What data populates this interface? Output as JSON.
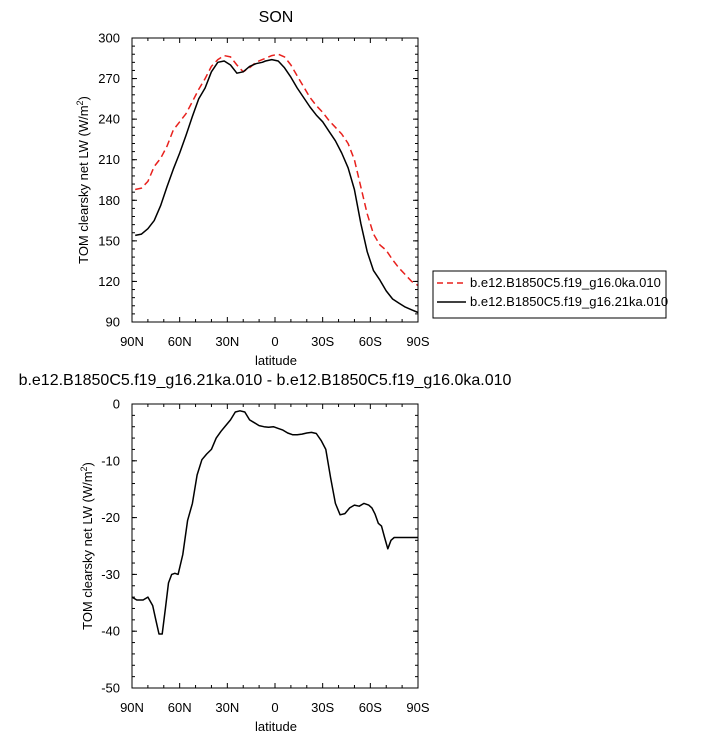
{
  "chart_data": [
    {
      "type": "line",
      "title": "SON",
      "xlabel": "latitude",
      "ylabel": "TOM clearsky net LW (W/m²)",
      "ylabel_main": "TOM clearsky net LW (W/m",
      "ylabel_sup": "2",
      "ylabel_close": ")",
      "xlim": [
        90,
        -90
      ],
      "ylim": [
        90,
        300
      ],
      "x_ticks": [
        90,
        60,
        30,
        0,
        -30,
        -60,
        -90
      ],
      "x_tick_labels": [
        "90N",
        "60N",
        "30N",
        "0",
        "30S",
        "60S",
        "90S"
      ],
      "y_ticks": [
        90,
        120,
        150,
        180,
        210,
        240,
        270,
        300
      ],
      "y_tick_labels": [
        "90",
        "120",
        "150",
        "180",
        "210",
        "240",
        "270",
        "300"
      ],
      "legend_position": "right",
      "series": [
        {
          "name": "b.e12.B1850C5.f19_g16.0ka.010",
          "color": "#e8211d",
          "dash": "dashed",
          "x": [
            88,
            84,
            80,
            76,
            72,
            68,
            64,
            60,
            56,
            52,
            48,
            44,
            40,
            36,
            32,
            28,
            24,
            20,
            16,
            12,
            8,
            6,
            2,
            -2,
            -6,
            -10,
            -14,
            -18,
            -22,
            -26,
            -30,
            -34,
            -38,
            -42,
            -46,
            -50,
            -54,
            -58,
            -62,
            -66,
            -70,
            -74,
            -78,
            -82,
            -86,
            -90
          ],
          "y": [
            188,
            189,
            194,
            205,
            211,
            220,
            232,
            238,
            244,
            253,
            262,
            270,
            279,
            284,
            287,
            286,
            280,
            275,
            278,
            282,
            284,
            285,
            287,
            288,
            286,
            280,
            272,
            264,
            256,
            250,
            245,
            239,
            234,
            229,
            222,
            210,
            190,
            170,
            155,
            147,
            143,
            136,
            130,
            125,
            120,
            117
          ]
        },
        {
          "name": "b.e12.B1850C5.f19_g16.21ka.010",
          "color": "#000000",
          "dash": "solid",
          "x": [
            88,
            84,
            80,
            76,
            72,
            68,
            64,
            60,
            56,
            52,
            48,
            44,
            40,
            36,
            32,
            28,
            24,
            20,
            16,
            12,
            8,
            6,
            2,
            -2,
            -6,
            -10,
            -14,
            -18,
            -22,
            -26,
            -30,
            -34,
            -38,
            -42,
            -46,
            -50,
            -54,
            -58,
            -62,
            -66,
            -70,
            -74,
            -78,
            -82,
            -86,
            -90
          ],
          "y": [
            154,
            155,
            159,
            165,
            176,
            190,
            203,
            215,
            228,
            242,
            255,
            263,
            275,
            282,
            283,
            280,
            274,
            275,
            279,
            281,
            282,
            283,
            284,
            283,
            278,
            271,
            263,
            256,
            249,
            243,
            238,
            231,
            224,
            215,
            204,
            188,
            163,
            142,
            128,
            121,
            113,
            107,
            104,
            101,
            99,
            97
          ]
        }
      ]
    },
    {
      "type": "line",
      "title": "b.e12.B1850C5.f19_g16.21ka.010 - b.e12.B1850C5.f19_g16.0ka.010",
      "xlabel": "latitude",
      "ylabel": "TOM clearsky net LW (W/m²)",
      "ylabel_main": "TOM clearsky net LW (W/m",
      "ylabel_sup": "2",
      "ylabel_close": ")",
      "xlim": [
        90,
        -90
      ],
      "ylim": [
        -50,
        0
      ],
      "x_ticks": [
        90,
        60,
        30,
        0,
        -30,
        -60,
        -90
      ],
      "x_tick_labels": [
        "90N",
        "60N",
        "30N",
        "0",
        "30S",
        "60S",
        "90S"
      ],
      "y_ticks": [
        0,
        -10,
        -20,
        -30,
        -40,
        -50
      ],
      "y_tick_labels": [
        "0",
        "-10",
        "-20",
        "-30",
        "-40",
        "-50"
      ],
      "series": [
        {
          "color": "#000000",
          "dash": "solid",
          "x": [
            90,
            87,
            83,
            80,
            77,
            75,
            73,
            71,
            69,
            67,
            65,
            63,
            61,
            58,
            55,
            52,
            49,
            46,
            43,
            40,
            37,
            34,
            31,
            28,
            25,
            22,
            19,
            16,
            13,
            10,
            7,
            4,
            1,
            -2,
            -5,
            -8,
            -11,
            -14,
            -17,
            -20,
            -23,
            -26,
            -29,
            -32,
            -35,
            -38,
            -41,
            -44,
            -47,
            -50,
            -53,
            -56,
            -59,
            -61,
            -63,
            -65,
            -67,
            -69,
            -71,
            -73,
            -75,
            -77,
            -79,
            -81,
            -83,
            -85,
            -87,
            -89,
            -90
          ],
          "y": [
            -34,
            -34.5,
            -34.5,
            -34,
            -35.5,
            -38,
            -40.5,
            -40.5,
            -36,
            -31.5,
            -30,
            -29.8,
            -30,
            -26.5,
            -20.5,
            -17.5,
            -12.5,
            -9.8,
            -8.8,
            -8,
            -6,
            -4.8,
            -3.8,
            -2.8,
            -1.4,
            -1.2,
            -1.4,
            -2.8,
            -3.3,
            -3.8,
            -4,
            -4.1,
            -4,
            -4.3,
            -4.6,
            -5.1,
            -5.4,
            -5.4,
            -5.3,
            -5.1,
            -5,
            -5.2,
            -6.4,
            -8,
            -13,
            -17.5,
            -19.5,
            -19.3,
            -18.3,
            -17.8,
            -18,
            -17.5,
            -17.8,
            -18.3,
            -19.4,
            -21,
            -21.5,
            -23.5,
            -25.5,
            -24,
            -23.5,
            -23.5,
            -23.5,
            -23.5,
            -23.5,
            -23.5,
            -23.5,
            -23.5,
            -23.5
          ]
        }
      ]
    }
  ]
}
